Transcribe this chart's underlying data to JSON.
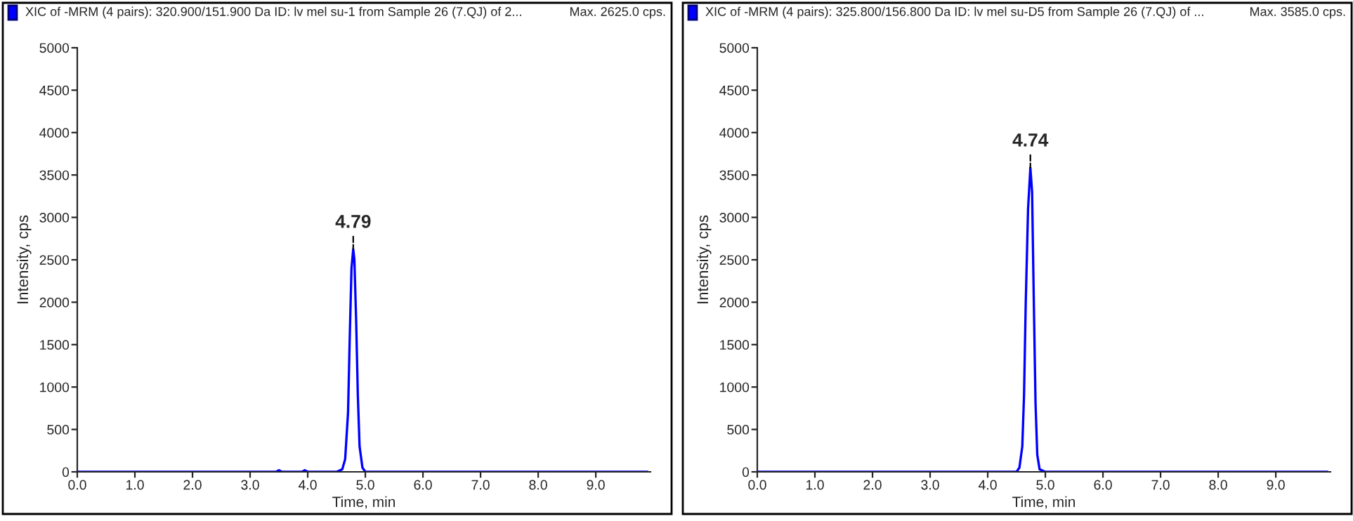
{
  "chart_data": [
    {
      "type": "line",
      "title": "XIC of -MRM (4 pairs): 320.900/151.900 Da ID: lv mel su-1 from Sample 26 (7.QJ) of 2...",
      "xlabel": "Time, min",
      "ylabel": "Intensity, cps",
      "annotations": [
        "Max. 2625.0 cps.",
        {
          "text": "4.79",
          "x": 4.79,
          "y": 2625
        }
      ],
      "series": [
        {
          "color": "#0000ff",
          "x": [
            0.0,
            3.45,
            3.5,
            3.55,
            3.9,
            3.95,
            4.0,
            4.5,
            4.6,
            4.65,
            4.7,
            4.73,
            4.76,
            4.79,
            4.81,
            4.84,
            4.87,
            4.9,
            4.95,
            5.0,
            9.9
          ],
          "values": [
            0,
            0,
            20,
            0,
            0,
            20,
            0,
            0,
            30,
            150,
            700,
            1600,
            2400,
            2625,
            2500,
            1800,
            900,
            300,
            50,
            0,
            0
          ]
        }
      ],
      "xlim": [
        0,
        9.95
      ],
      "ylim": [
        0,
        5000
      ],
      "xticks": [
        {
          "value": 0,
          "label": "0.0"
        },
        {
          "value": 1,
          "label": "1.0"
        },
        {
          "value": 2,
          "label": "2.0"
        },
        {
          "value": 3,
          "label": "3.0"
        },
        {
          "value": 4,
          "label": "4.0"
        },
        {
          "value": 5,
          "label": "5.0"
        },
        {
          "value": 6,
          "label": "6.0"
        },
        {
          "value": 7,
          "label": "7.0"
        },
        {
          "value": 8,
          "label": "8.0"
        },
        {
          "value": 9,
          "label": "9.0"
        }
      ],
      "yticks": [
        0,
        500,
        1000,
        1500,
        2000,
        2500,
        3000,
        3500,
        4000,
        4500,
        5000
      ],
      "grid": false,
      "legend": false
    },
    {
      "type": "line",
      "title": "XIC of -MRM (4 pairs): 325.800/156.800 Da ID: lv mel su-D5 from Sample 26 (7.QJ) of ...",
      "xlabel": "Time, min",
      "ylabel": "Intensity, cps",
      "annotations": [
        "Max. 3585.0 cps.",
        {
          "text": "4.74",
          "x": 4.74,
          "y": 3585
        }
      ],
      "series": [
        {
          "color": "#0000ff",
          "x": [
            0.0,
            4.5,
            4.55,
            4.6,
            4.63,
            4.66,
            4.7,
            4.74,
            4.77,
            4.8,
            4.83,
            4.86,
            4.9,
            5.0,
            9.9
          ],
          "values": [
            0,
            0,
            50,
            300,
            900,
            2000,
            3100,
            3585,
            3300,
            2000,
            800,
            200,
            30,
            0,
            0
          ]
        }
      ],
      "xlim": [
        0,
        9.95
      ],
      "ylim": [
        0,
        5000
      ],
      "xticks": [
        {
          "value": 0,
          "label": "0.0"
        },
        {
          "value": 1,
          "label": "1.0"
        },
        {
          "value": 2,
          "label": "2.0"
        },
        {
          "value": 3,
          "label": "3.0"
        },
        {
          "value": 4,
          "label": "4.0"
        },
        {
          "value": 5,
          "label": "5.0"
        },
        {
          "value": 6,
          "label": "6.0"
        },
        {
          "value": 7,
          "label": "7.0"
        },
        {
          "value": 8,
          "label": "8.0"
        },
        {
          "value": 9,
          "label": "9.0"
        }
      ],
      "yticks": [
        0,
        500,
        1000,
        1500,
        2000,
        2500,
        3000,
        3500,
        4000,
        4500,
        5000
      ],
      "grid": false,
      "legend": false
    }
  ]
}
